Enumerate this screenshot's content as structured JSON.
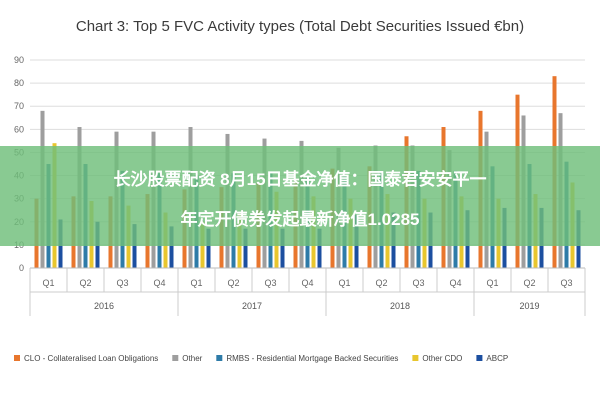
{
  "chart_data": {
    "type": "bar",
    "title": "Chart 3: Top 5 FVC Activity types (Total Debt Securities Issued €bn)",
    "xlabel": "",
    "ylabel": "",
    "ylim": [
      0,
      90
    ],
    "yticks": [
      0,
      10,
      20,
      30,
      40,
      50,
      60,
      70,
      80,
      90
    ],
    "categories": [
      "Q1",
      "Q2",
      "Q3",
      "Q4",
      "Q1",
      "Q2",
      "Q3",
      "Q4",
      "Q1",
      "Q2",
      "Q3",
      "Q4",
      "Q1",
      "Q2",
      "Q3"
    ],
    "years": [
      {
        "label": "2016",
        "start": 0,
        "end": 3
      },
      {
        "label": "2017",
        "start": 4,
        "end": 7
      },
      {
        "label": "2018",
        "start": 8,
        "end": 11
      },
      {
        "label": "2019",
        "start": 12,
        "end": 14
      }
    ],
    "series": [
      {
        "name": "CLO - Collateralised Loan Obligations",
        "color": "#e8762d",
        "values": [
          30,
          31,
          31,
          32,
          34,
          35,
          37,
          38,
          43,
          44,
          57,
          61,
          68,
          75,
          83
        ]
      },
      {
        "name": "Other",
        "color": "#9e9e9e",
        "values": [
          68,
          61,
          59,
          59,
          61,
          58,
          56,
          55,
          52,
          53,
          53,
          51,
          59,
          66,
          67
        ]
      },
      {
        "name": "RMBS - Residential Mortgage Backed Securities",
        "color": "#2e7ba8",
        "values": [
          45,
          45,
          42,
          41,
          40,
          41,
          41,
          40,
          40,
          42,
          42,
          42,
          44,
          45,
          46
        ]
      },
      {
        "name": "Other CDO",
        "color": "#e8c62e",
        "values": [
          54,
          29,
          27,
          24,
          20,
          24,
          33,
          31,
          30,
          32,
          30,
          31,
          30,
          32,
          37
        ]
      },
      {
        "name": "ABCP",
        "color": "#1c4fa0",
        "values": [
          21,
          20,
          19,
          18,
          17,
          17,
          17,
          17,
          23,
          24,
          24,
          25,
          26,
          26,
          25
        ]
      }
    ],
    "grid": true,
    "legend_position": "bottom"
  },
  "overlay": {
    "line1": "长沙股票配资 8月15日基金净值：国泰君安安平一",
    "line2": "年定开债券发起最新净值1.0285"
  }
}
